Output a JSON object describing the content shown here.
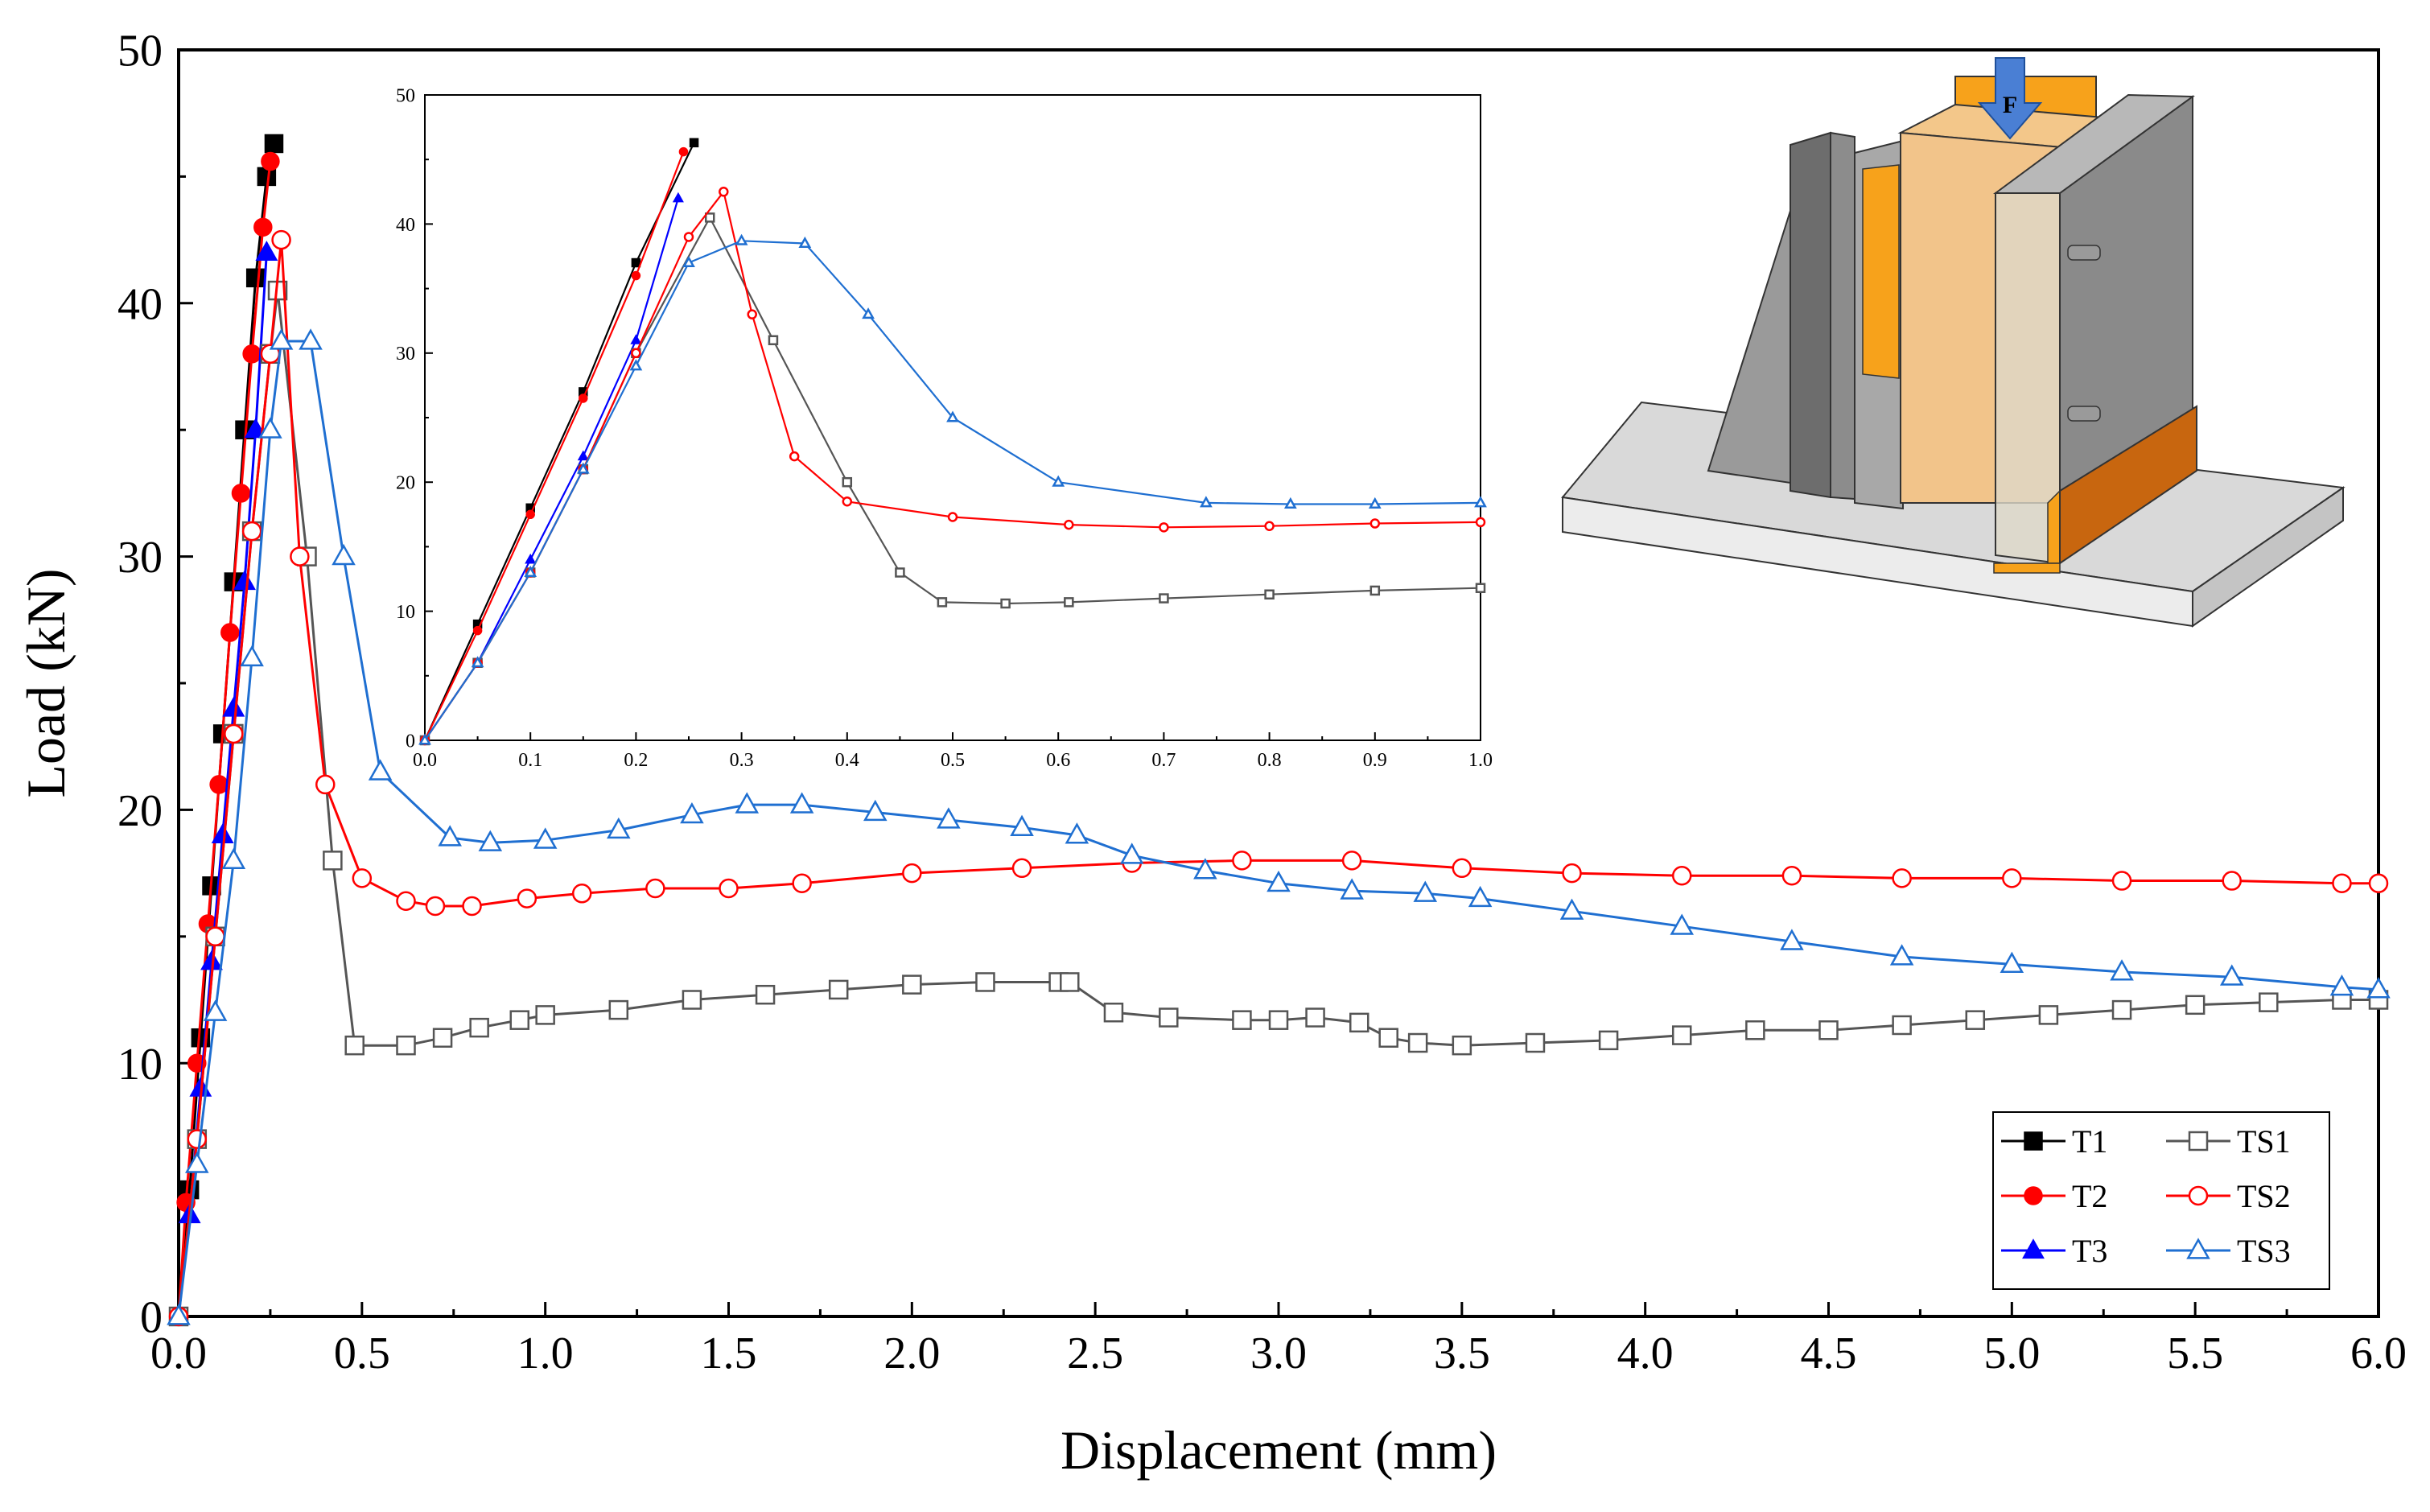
{
  "chart_data": [
    {
      "type": "line",
      "xlabel": "Displacement (mm)",
      "ylabel": "Load (kN)",
      "xlim": [
        0,
        6.0
      ],
      "ylim": [
        0,
        50
      ],
      "xticks": [
        "0.0",
        "0.5",
        "1.0",
        "1.5",
        "2.0",
        "2.5",
        "3.0",
        "3.5",
        "4.0",
        "4.5",
        "5.0",
        "5.5",
        "6.0"
      ],
      "yticks": [
        "0",
        "10",
        "20",
        "30",
        "40",
        "50"
      ],
      "grid": false,
      "legend": "bottom-right",
      "series": [
        {
          "name": "T1",
          "color": "#000000",
          "marker": "square-filled",
          "x": [
            0,
            0.03,
            0.06,
            0.09,
            0.12,
            0.15,
            0.18,
            0.21,
            0.24,
            0.26
          ],
          "y": [
            0,
            5,
            11,
            17,
            23,
            29,
            35,
            41,
            45,
            46.3
          ]
        },
        {
          "name": "T2",
          "color": "#ff0000",
          "marker": "circle-filled",
          "x": [
            0,
            0.02,
            0.05,
            0.08,
            0.11,
            0.14,
            0.17,
            0.2,
            0.23,
            0.25
          ],
          "y": [
            0,
            4.5,
            10,
            15.5,
            21,
            27,
            32.5,
            38,
            43,
            45.6
          ]
        },
        {
          "name": "T3",
          "color": "#0000ff",
          "marker": "triangle-filled",
          "x": [
            0,
            0.03,
            0.06,
            0.09,
            0.12,
            0.15,
            0.18,
            0.21,
            0.24
          ],
          "y": [
            0,
            4,
            9,
            14,
            19,
            24,
            29,
            35,
            42
          ]
        },
        {
          "name": "TS1",
          "color": "#555555",
          "marker": "square-open",
          "x": [
            0,
            0.05,
            0.1,
            0.15,
            0.2,
            0.25,
            0.27,
            0.35,
            0.42,
            0.48,
            0.62,
            0.72,
            0.82,
            0.93,
            1.0,
            1.2,
            1.4,
            1.6,
            1.8,
            2.0,
            2.2,
            2.4,
            2.43,
            2.55,
            2.7,
            2.9,
            3.0,
            3.1,
            3.22,
            3.3,
            3.38,
            3.5,
            3.7,
            3.9,
            4.1,
            4.3,
            4.5,
            4.7,
            4.9,
            5.1,
            5.3,
            5.5,
            5.7,
            5.9,
            6.0
          ],
          "y": [
            0,
            7,
            15,
            23,
            31,
            38,
            40.5,
            30,
            18,
            10.7,
            10.7,
            11.0,
            11.4,
            11.7,
            11.9,
            12.1,
            12.5,
            12.7,
            12.9,
            13.1,
            13.2,
            13.2,
            13.2,
            12.0,
            11.8,
            11.7,
            11.7,
            11.8,
            11.6,
            11.0,
            10.8,
            10.7,
            10.8,
            10.9,
            11.1,
            11.3,
            11.3,
            11.5,
            11.7,
            11.9,
            12.1,
            12.3,
            12.4,
            12.5,
            12.5
          ]
        },
        {
          "name": "TS2",
          "color": "#ff0000",
          "marker": "circle-open",
          "x": [
            0,
            0.05,
            0.1,
            0.15,
            0.2,
            0.25,
            0.28,
            0.33,
            0.4,
            0.5,
            0.62,
            0.7,
            0.8,
            0.95,
            1.1,
            1.3,
            1.5,
            1.7,
            2.0,
            2.3,
            2.6,
            2.9,
            3.2,
            3.5,
            3.8,
            4.1,
            4.4,
            4.7,
            5.0,
            5.3,
            5.6,
            5.9,
            6.0
          ],
          "y": [
            0,
            7,
            15,
            23,
            31,
            38,
            42.5,
            30,
            21,
            17.3,
            16.4,
            16.2,
            16.2,
            16.5,
            16.7,
            16.9,
            16.9,
            17.1,
            17.5,
            17.7,
            17.9,
            18.0,
            18.0,
            17.7,
            17.5,
            17.4,
            17.4,
            17.3,
            17.3,
            17.2,
            17.2,
            17.1,
            17.1
          ]
        },
        {
          "name": "TS3",
          "color": "#1f6fd1",
          "marker": "triangle-open",
          "x": [
            0,
            0.05,
            0.1,
            0.15,
            0.2,
            0.25,
            0.28,
            0.36,
            0.45,
            0.55,
            0.74,
            0.85,
            1.0,
            1.2,
            1.4,
            1.55,
            1.7,
            1.9,
            2.1,
            2.3,
            2.45,
            2.6,
            2.8,
            3.0,
            3.2,
            3.4,
            3.55,
            3.8,
            4.1,
            4.4,
            4.7,
            5.0,
            5.3,
            5.6,
            5.9,
            6.0
          ],
          "y": [
            0,
            6,
            12,
            18,
            26,
            35,
            38.5,
            38.5,
            30,
            21.5,
            18.9,
            18.7,
            18.8,
            19.2,
            19.8,
            20.2,
            20.2,
            19.9,
            19.6,
            19.3,
            19.0,
            18.2,
            17.6,
            17.1,
            16.8,
            16.7,
            16.5,
            16.0,
            15.4,
            14.8,
            14.2,
            13.9,
            13.6,
            13.4,
            13.0,
            12.9
          ]
        }
      ]
    },
    {
      "type": "line",
      "role": "inset",
      "xlim": [
        0,
        1.0
      ],
      "ylim": [
        0,
        50
      ],
      "xticks": [
        "0.0",
        "0.1",
        "0.2",
        "0.3",
        "0.4",
        "0.5",
        "0.6",
        "0.7",
        "0.8",
        "0.9",
        "1.0"
      ],
      "yticks": [
        "0",
        "10",
        "20",
        "30",
        "40",
        "50"
      ],
      "series": [
        {
          "name": "T1",
          "color": "#000000",
          "x": [
            0,
            0.05,
            0.1,
            0.15,
            0.2,
            0.255
          ],
          "y": [
            0,
            9,
            18,
            27,
            37,
            46.3
          ]
        },
        {
          "name": "T2",
          "color": "#ff0000",
          "x": [
            0,
            0.05,
            0.1,
            0.15,
            0.2,
            0.245
          ],
          "y": [
            0,
            8.5,
            17.5,
            26.5,
            36,
            45.6
          ]
        },
        {
          "name": "T3",
          "color": "#0000ff",
          "x": [
            0,
            0.05,
            0.1,
            0.15,
            0.2,
            0.24
          ],
          "y": [
            0,
            6,
            14,
            22,
            31,
            42
          ]
        },
        {
          "name": "TS1",
          "color": "#555555",
          "x": [
            0,
            0.05,
            0.1,
            0.15,
            0.2,
            0.27,
            0.33,
            0.4,
            0.45,
            0.49,
            0.55,
            0.61,
            0.7,
            0.8,
            0.9,
            1.0
          ],
          "y": [
            0,
            6,
            13,
            21,
            30,
            40.5,
            31,
            20,
            13,
            10.7,
            10.6,
            10.7,
            11.0,
            11.3,
            11.6,
            11.8
          ]
        },
        {
          "name": "TS2",
          "color": "#ff0000",
          "x": [
            0,
            0.05,
            0.1,
            0.15,
            0.2,
            0.25,
            0.283,
            0.31,
            0.35,
            0.4,
            0.5,
            0.61,
            0.7,
            0.8,
            0.9,
            1.0
          ],
          "y": [
            0,
            6,
            13,
            21,
            30,
            39,
            42.5,
            33,
            22,
            18.5,
            17.3,
            16.7,
            16.5,
            16.6,
            16.8,
            16.9
          ]
        },
        {
          "name": "TS3",
          "color": "#1f6fd1",
          "x": [
            0,
            0.05,
            0.1,
            0.15,
            0.2,
            0.25,
            0.3,
            0.36,
            0.42,
            0.5,
            0.6,
            0.74,
            0.82,
            0.9,
            1.0
          ],
          "y": [
            0,
            6,
            13,
            21,
            29,
            37,
            38.7,
            38.5,
            33,
            25,
            20,
            18.4,
            18.3,
            18.3,
            18.4
          ]
        }
      ]
    }
  ],
  "figure": {
    "force_label": "F",
    "legend_entries": [
      "T1",
      "TS1",
      "T2",
      "TS2",
      "T3",
      "TS3"
    ]
  }
}
